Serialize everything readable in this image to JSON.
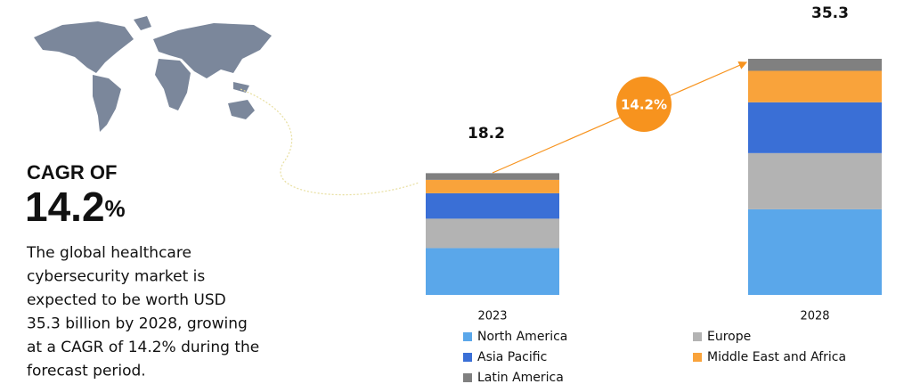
{
  "headline": {
    "label": "CAGR OF",
    "value": "14.2",
    "unit": "%"
  },
  "description": [
    "The global healthcare",
    "cybersecurity market is",
    "expected to be worth USD",
    "35.3 billion by 2028, growing",
    "at a CAGR of 14.2% during the",
    "forecast period."
  ],
  "chart_data": {
    "type": "stacked_bar",
    "categories": [
      "2023",
      "2028"
    ],
    "totals": [
      18.2,
      35.3
    ],
    "annotation": "14.2%",
    "series": [
      {
        "name": "North America",
        "color": "#5aa7ea",
        "values": [
          7.0,
          12.8
        ]
      },
      {
        "name": "Europe",
        "color": "#b3b3b3",
        "values": [
          4.4,
          8.4
        ]
      },
      {
        "name": "Asia Pacific",
        "color": "#3a6fd6",
        "values": [
          3.8,
          7.6
        ]
      },
      {
        "name": "Middle East and Africa",
        "color": "#f9a33b",
        "values": [
          2.0,
          4.7
        ]
      },
      {
        "name": "Latin America",
        "color": "#808080",
        "values": [
          1.0,
          1.8
        ]
      }
    ]
  }
}
